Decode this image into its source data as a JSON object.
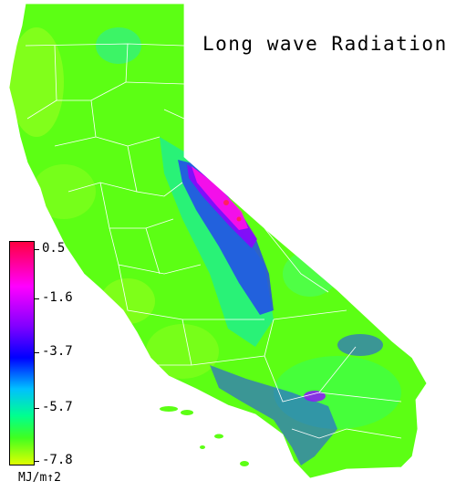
{
  "map": {
    "title": "Long wave Radiation",
    "region": "California",
    "colors": {
      "green": "#4cff00",
      "lime": "#80ff10",
      "cyan": "#00e0ff",
      "blue": "#0020ff",
      "purple": "#8000ff",
      "magenta": "#ff00e0",
      "red": "#ff0040",
      "boundary": "#ffffff"
    }
  },
  "legend": {
    "labels": [
      "0.5",
      "-1.6",
      "-3.7",
      "-5.7",
      "-7.8"
    ],
    "units": "MJ/m↑2"
  }
}
